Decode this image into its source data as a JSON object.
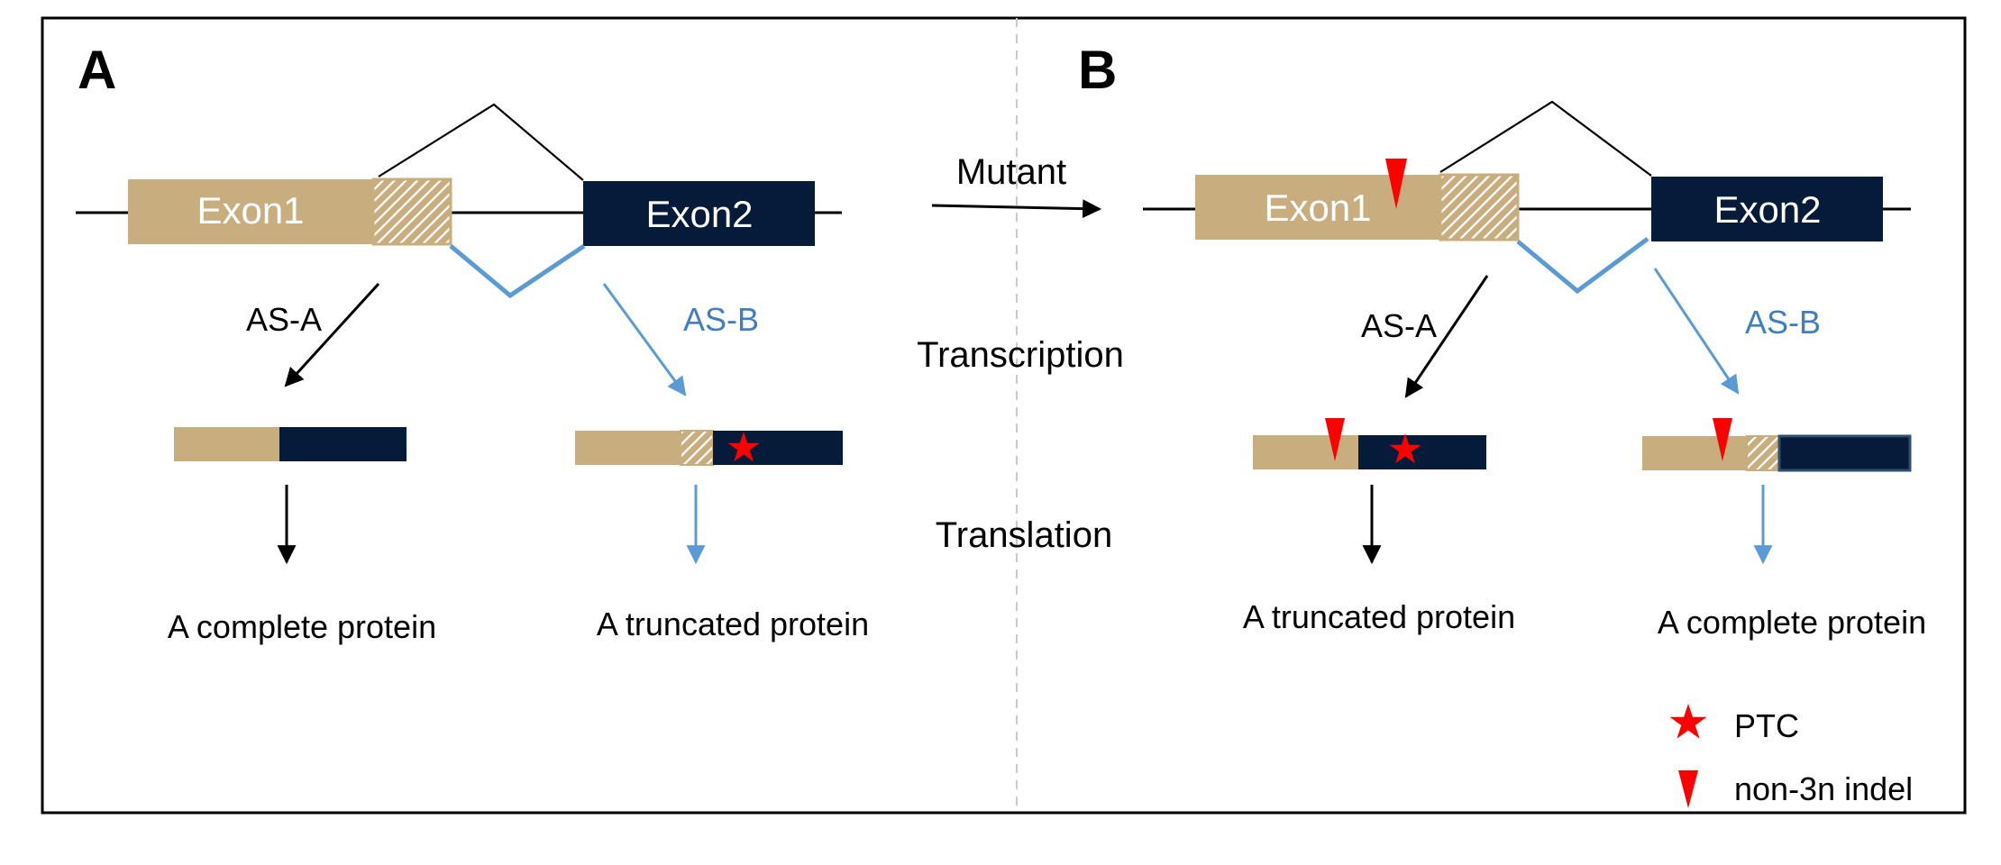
{
  "panels": {
    "a": {
      "letter": "A",
      "exon1": "Exon1",
      "exon2": "Exon2",
      "as_a": "AS-A",
      "as_b": "AS-B",
      "result_left": "A complete protein",
      "result_right": "A truncated protein"
    },
    "b": {
      "letter": "B",
      "exon1": "Exon1",
      "exon2": "Exon2",
      "as_a": "AS-A",
      "as_b": "AS-B",
      "result_left": "A truncated protein",
      "result_right": "A complete protein"
    }
  },
  "center": {
    "mutant": "Mutant",
    "transcription": "Transcription",
    "translation": "Translation"
  },
  "legend": {
    "ptc": "PTC",
    "indel": "non-3n indel"
  },
  "colors": {
    "exon1": "#c8ad7f",
    "exon2": "#061a3a",
    "splice_b": "#5b9bd5",
    "as_b_text": "#3f7fc1",
    "marker": "#ff0000"
  },
  "icons": {
    "ptc": "star-icon",
    "indel": "triangle-down-icon"
  }
}
